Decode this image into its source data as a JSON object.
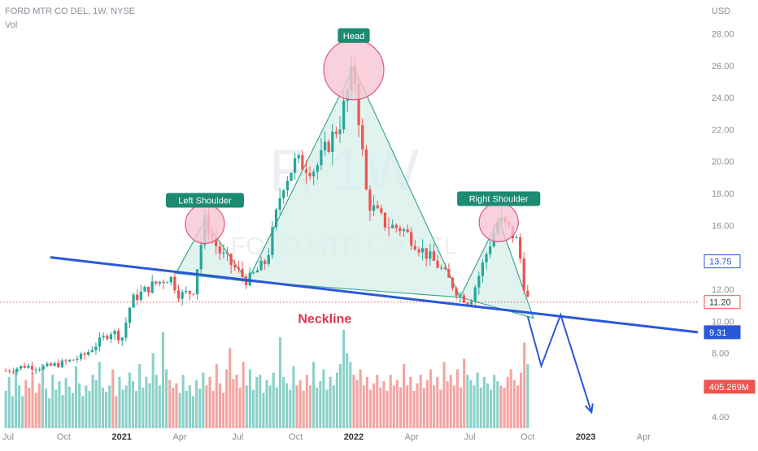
{
  "header": {
    "symbol_line": "FORD MTR CO DEL, 1W, NYSE",
    "volume_label": "Vol"
  },
  "watermark": {
    "ticker": "F, 1W",
    "name": "FORD MTR CO DEL"
  },
  "chart_data": {
    "type": "candlestick",
    "title": "FORD MTR CO DEL, 1W, NYSE",
    "y_axis": {
      "unit": "USD",
      "ticks": [
        "28.00",
        "26.00",
        "24.00",
        "22.00",
        "20.00",
        "18.00",
        "16.00",
        "14.00",
        "12.00",
        "10.00",
        "8.00",
        "6.00",
        "4.00"
      ],
      "range": [
        3.3,
        29.5
      ]
    },
    "x_axis": {
      "ticks": [
        "Jul",
        "Oct",
        "2021",
        "Apr",
        "Jul",
        "Oct",
        "2022",
        "Apr",
        "Jul",
        "Oct",
        "2023",
        "Apr"
      ],
      "bold_ticks": [
        "2021",
        "2022",
        "2023"
      ],
      "ticks_month_index": [
        0,
        3,
        6,
        9,
        12,
        15,
        18,
        21,
        24,
        27,
        30,
        33
      ],
      "range_months": [
        -0.3,
        35.8
      ]
    },
    "price_path": [
      [
        0.0,
        6.9
      ],
      [
        1.0,
        7.2
      ],
      [
        2.0,
        7.1
      ],
      [
        3.0,
        7.4
      ],
      [
        4.0,
        7.8
      ],
      [
        5.0,
        8.9
      ],
      [
        5.5,
        9.4
      ],
      [
        6.0,
        8.9
      ],
      [
        6.5,
        11.3
      ],
      [
        7.5,
        12.2
      ],
      [
        8.0,
        12.5
      ],
      [
        8.5,
        12.8
      ],
      [
        9.0,
        11.6
      ],
      [
        9.7,
        11.9
      ],
      [
        10.3,
        16.3
      ],
      [
        11.0,
        14.4
      ],
      [
        12.5,
        12.5
      ],
      [
        13.5,
        13.8
      ],
      [
        14.3,
        18.5
      ],
      [
        15.0,
        20.0
      ],
      [
        16.0,
        19.5
      ],
      [
        17.3,
        22.5
      ],
      [
        18.0,
        25.9
      ],
      [
        18.7,
        17.5
      ],
      [
        19.7,
        16.0
      ],
      [
        20.5,
        15.8
      ],
      [
        21.5,
        14.5
      ],
      [
        22.5,
        13.3
      ],
      [
        23.5,
        11.6
      ],
      [
        24.0,
        11.2
      ],
      [
        25.0,
        14.7
      ],
      [
        25.5,
        16.4
      ],
      [
        26.0,
        15.8
      ],
      [
        26.5,
        14.9
      ],
      [
        26.8,
        12.3
      ],
      [
        27.0,
        11.4
      ]
    ],
    "volume_heights": [
      0.35,
      0.48,
      0.3,
      0.55,
      0.4,
      0.3,
      0.45,
      0.38,
      0.52,
      0.33,
      0.42,
      0.6,
      0.37,
      0.28,
      0.5,
      0.36,
      0.44,
      0.31,
      0.47,
      0.39,
      0.33,
      0.58,
      0.42,
      0.3,
      0.4,
      0.35,
      0.5,
      0.45,
      0.62,
      0.38,
      0.34,
      0.4,
      0.55,
      0.3,
      0.48,
      0.36,
      0.4,
      0.52,
      0.44,
      0.35,
      0.6,
      0.38,
      0.48,
      0.42,
      0.7,
      0.5,
      0.4,
      0.9,
      0.55,
      0.45,
      0.38,
      0.42,
      0.33,
      0.5,
      0.35,
      0.4,
      0.3,
      0.45,
      0.37,
      0.52,
      0.4,
      0.48,
      0.35,
      0.6,
      0.42,
      0.33,
      0.55,
      0.75,
      0.46,
      0.5,
      0.38,
      0.62,
      0.4,
      0.55,
      0.36,
      0.48,
      0.5,
      0.33,
      0.45,
      0.4,
      0.52,
      0.38,
      0.85,
      0.48,
      0.42,
      0.36,
      0.58,
      0.4,
      0.45,
      0.35,
      0.5,
      0.4,
      0.62,
      0.38,
      0.44,
      0.55,
      0.36,
      0.48,
      0.4,
      0.52,
      0.6,
      0.92,
      0.7,
      0.62,
      0.5,
      0.45,
      0.55,
      0.4,
      0.48,
      0.36,
      0.42,
      0.5,
      0.38,
      0.44,
      0.35,
      0.5,
      0.4,
      0.45,
      0.38,
      0.6,
      0.4,
      0.48,
      0.35,
      0.42,
      0.5,
      0.38,
      0.45,
      0.55,
      0.4,
      0.48,
      0.36,
      0.62,
      0.44,
      0.5,
      0.4,
      0.55,
      0.38,
      0.65,
      0.5,
      0.45,
      0.4,
      0.52,
      0.38,
      0.48,
      0.42,
      0.36,
      0.5,
      0.44,
      0.4,
      0.38,
      0.48,
      0.55,
      0.45,
      0.4,
      0.52,
      0.8,
      0.6
    ],
    "colors": {
      "up": "#26a69a",
      "down": "#ef5350",
      "vol_up": "#8ad1c9",
      "vol_down": "#f4a4a1",
      "neckline": "#2a58d8",
      "pattern_fill": "#d7efe9",
      "pattern_stroke": "#3ba98f",
      "circle_fill": "#f8c6d3",
      "circle_stroke": "#e2577e",
      "label_bg": "#1d8a72"
    },
    "annotations": [
      {
        "label": "Head",
        "month": 18.0,
        "price": 25.9
      },
      {
        "label": "Left Shoulder",
        "month": 10.3,
        "price": 16.3
      },
      {
        "label": "Right Shoulder",
        "month": 25.5,
        "price": 16.4
      },
      {
        "label": "Neckline",
        "month": 16.5,
        "price": 9.9
      }
    ],
    "neckline": {
      "from": [
        2.3,
        14.0
      ],
      "to": [
        35.8,
        9.31
      ]
    },
    "projection": [
      [
        27.0,
        10.3
      ],
      [
        27.7,
        7.2
      ],
      [
        28.7,
        10.4
      ],
      [
        30.3,
        4.3
      ]
    ],
    "price_labels": [
      {
        "text": "13.75",
        "price": 13.75,
        "style": "outline"
      },
      {
        "text": "11.20",
        "price": 11.2,
        "style": "red"
      },
      {
        "text": "9.31",
        "price": 9.31,
        "style": "blue"
      },
      {
        "text": "405.269M",
        "price": 5.9,
        "style": "redfill"
      }
    ],
    "last_price_line": 11.2
  }
}
